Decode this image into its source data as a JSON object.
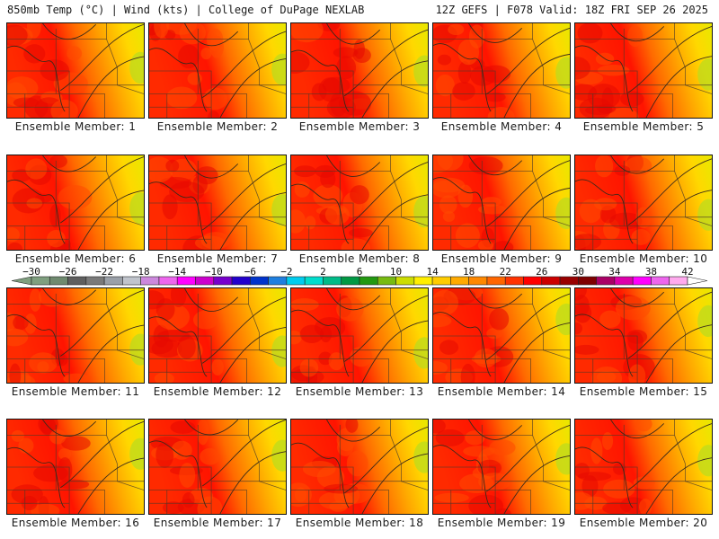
{
  "header": {
    "title_left": "850mb Temp (°C) | Wind (kts) | College of DuPage NEXLAB",
    "title_right": "12Z GEFS | F078 Valid: 18Z FRI SEP 26 2025"
  },
  "panels": [
    {
      "label": "Ensemble Member: 1",
      "warmth": 0.55
    },
    {
      "label": "Ensemble Member: 2",
      "warmth": 0.75
    },
    {
      "label": "Ensemble Member: 3",
      "warmth": 0.6
    },
    {
      "label": "Ensemble Member: 4",
      "warmth": 0.7
    },
    {
      "label": "Ensemble Member: 5",
      "warmth": 0.65
    },
    {
      "label": "Ensemble Member: 6",
      "warmth": 0.45
    },
    {
      "label": "Ensemble Member: 7",
      "warmth": 0.55
    },
    {
      "label": "Ensemble Member: 8",
      "warmth": 0.7
    },
    {
      "label": "Ensemble Member: 9",
      "warmth": 0.72
    },
    {
      "label": "Ensemble Member: 10",
      "warmth": 0.6
    },
    {
      "label": "Ensemble Member: 11",
      "warmth": 0.5
    },
    {
      "label": "Ensemble Member: 12",
      "warmth": 0.6
    },
    {
      "label": "Ensemble Member: 13",
      "warmth": 0.62
    },
    {
      "label": "Ensemble Member: 14",
      "warmth": 0.55
    },
    {
      "label": "Ensemble Member: 15",
      "warmth": 0.58
    },
    {
      "label": "Ensemble Member: 16",
      "warmth": 0.5
    },
    {
      "label": "Ensemble Member: 17",
      "warmth": 0.68
    },
    {
      "label": "Ensemble Member: 18",
      "warmth": 0.62
    },
    {
      "label": "Ensemble Member: 19",
      "warmth": 0.65
    },
    {
      "label": "Ensemble Member: 20",
      "warmth": 0.6
    }
  ],
  "colorbar": {
    "unit": "°C",
    "tick_labels": [
      "-30",
      "-26",
      "-22",
      "-18",
      "-14",
      "-10",
      "-6",
      "-2",
      "2",
      "6",
      "10",
      "14",
      "18",
      "22",
      "26",
      "30",
      "34",
      "38",
      "42"
    ],
    "colors": [
      "#7f9f7f",
      "#6f8a6f",
      "#5f5f5f",
      "#7a7a7a",
      "#9aa0a8",
      "#c0c4cc",
      "#cc88dd",
      "#ee66ee",
      "#ff00ff",
      "#cc00cc",
      "#7700cc",
      "#2200cc",
      "#0033cc",
      "#1f7fdf",
      "#00ccee",
      "#00ddcc",
      "#00bb88",
      "#009944",
      "#229911",
      "#77bb11",
      "#ccdd00",
      "#ffee00",
      "#ffcc00",
      "#ffaa00",
      "#ff8800",
      "#ff6600",
      "#ff3300",
      "#ff0000",
      "#cc0000",
      "#990000",
      "#7f0000",
      "#aa0066",
      "#dd00aa",
      "#ff00ff",
      "#ee66ee",
      "#ffaaee"
    ]
  }
}
